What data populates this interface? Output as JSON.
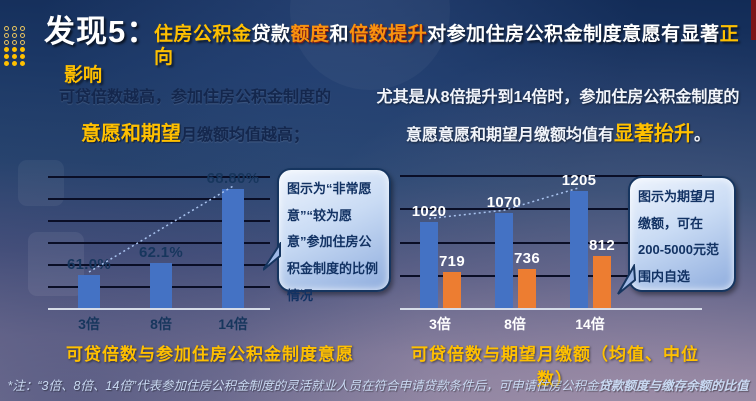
{
  "colors": {
    "gold": "#FFC000",
    "orange_highlight": "#F8930F",
    "navy_text": "#17365D",
    "bar_blue": "#4472C4",
    "bar_orange": "#ED7D31",
    "gridline": "#0A0E26",
    "baseline": "#D6DCE8",
    "trend_line": "#A9C3EF",
    "footer_text": "#C9D9F2",
    "red_strip": "#7D1418",
    "background_top": "#122B56",
    "background_bottom": "#8B84A2"
  },
  "header": {
    "finding_label": "发现5：",
    "segments": [
      {
        "text": "住房公积金",
        "style": "gold"
      },
      {
        "text": "贷款",
        "style": "white"
      },
      {
        "text": "额度",
        "style": "orange"
      },
      {
        "text": "和",
        "style": "white"
      },
      {
        "text": "倍数提升",
        "style": "orange"
      },
      {
        "text": "对参加住房公积金制度意愿有显著",
        "style": "white"
      },
      {
        "text": "正向",
        "style": "gold"
      }
    ],
    "wrap_word": "影响"
  },
  "notes": {
    "left": {
      "line1": "可贷倍数越高，参加住房公积金制度的",
      "highlight": "意愿和期望",
      "line2_rest": "月缴额均值越高；"
    },
    "right": {
      "line1": "尤其是从8倍提升到14倍时，参加住房公积金制度的",
      "line2_pre": "意愿意愿和期望月缴额均值有",
      "highlight": "显著抬升",
      "line2_post": "。"
    }
  },
  "callouts": {
    "left": {
      "text": "图示为“非常愿意”“较为愿意”参加住房公积金制度的比例情况"
    },
    "right": {
      "text": "图示为期望月缴额，可在200-5000元范围内自选"
    }
  },
  "chart_data": [
    {
      "type": "bar",
      "title": "可贷倍数与参加住房公积金制度意愿",
      "categories": [
        "3倍",
        "8倍",
        "14倍"
      ],
      "values": [
        61.0,
        62.1,
        68.8
      ],
      "value_labels": [
        "61.0%",
        "62.1%",
        "68.80%"
      ],
      "ylim": [
        58,
        70
      ],
      "gridline_values": [
        60,
        62,
        64,
        66,
        68,
        70
      ],
      "bar_color": "#4472C4",
      "label_color": "#17365D",
      "category_color": "#17365D",
      "trend_line": "straight",
      "grid": true,
      "legend": "none"
    },
    {
      "type": "bar",
      "title": "可贷倍数与期望月缴额（均值、中位数）",
      "categories": [
        "3倍",
        "8倍",
        "14倍"
      ],
      "series": [
        {
          "name": "均值",
          "color": "#4472C4",
          "values": [
            1020,
            1070,
            1205
          ]
        },
        {
          "name": "中位数",
          "color": "#ED7D31",
          "values": [
            719,
            736,
            812
          ]
        }
      ],
      "value_labels": [
        [
          "1020",
          "1070",
          "1205"
        ],
        [
          "719",
          "736",
          "812"
        ]
      ],
      "ylim": [
        500,
        1300
      ],
      "gridline_values": [
        700,
        900,
        1100,
        1300
      ],
      "label_color": "#FFFFFF",
      "category_color": "#FFFFFF",
      "trend_line": "polyline",
      "grid": true,
      "legend": "none"
    }
  ],
  "footer": {
    "note_regular": "*注：“3倍、8倍、14倍”代表参加住房公积金制度的灵活就业人员在符合申请贷款条件后，可申请住房公积金",
    "note_bold": "贷款额度与缴存余额的比值"
  }
}
